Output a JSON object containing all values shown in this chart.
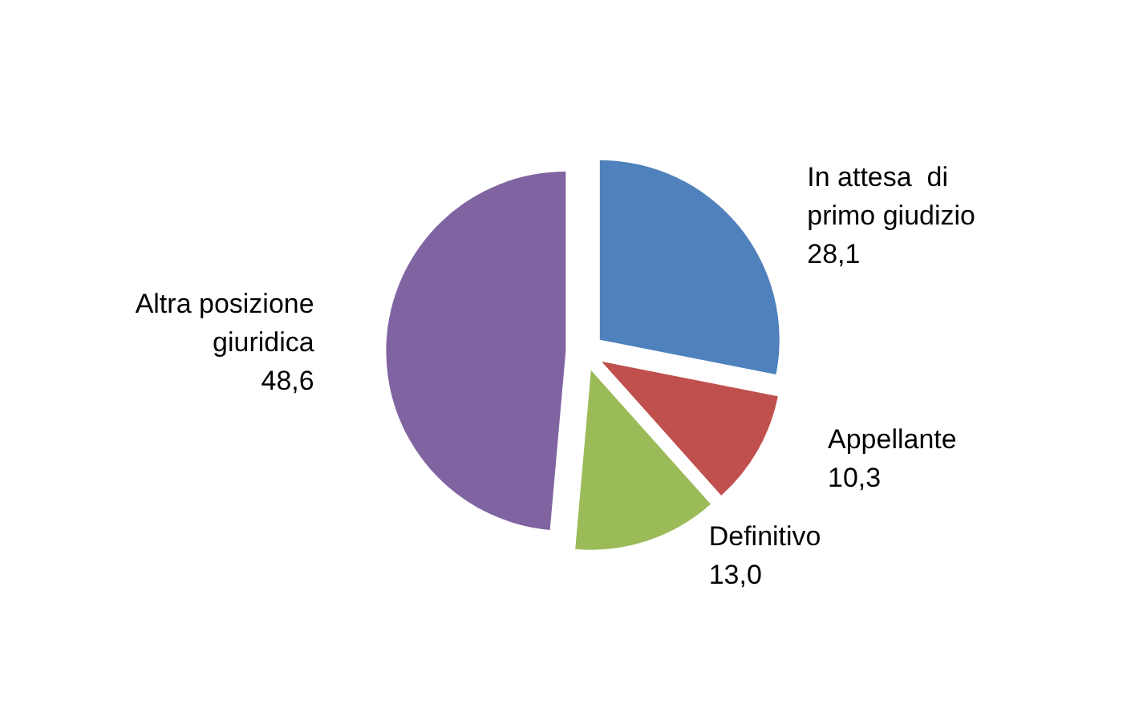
{
  "chart_data": {
    "type": "pie",
    "categories": [
      "In attesa  di\nprimo giudizio",
      "Appellante",
      "Definitivo",
      "Altra posizione\ngiuridica"
    ],
    "values": [
      28.1,
      10.3,
      13.0,
      48.6
    ],
    "value_labels": [
      "28,1",
      "10,3",
      "13,0",
      "48,6"
    ],
    "colors": [
      "#4f81bd",
      "#c0504d",
      "#9bbb59",
      "#8064a2"
    ]
  }
}
